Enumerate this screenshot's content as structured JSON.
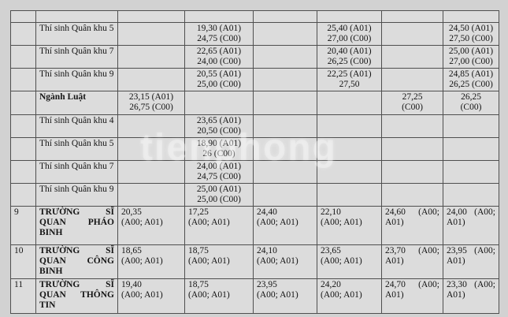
{
  "page": {
    "background_color": "#d2d2d2",
    "watermark_text": "tienphong"
  },
  "table": {
    "cell_background": "#dcdcdc",
    "border_color": "#4f4f4f",
    "rows": [
      {
        "no": "",
        "name": "",
        "type": "empty",
        "scores": [
          "",
          "",
          "",
          "",
          "",
          ""
        ]
      },
      {
        "no": "",
        "name": "Thí sinh Quân khu 5",
        "type": "region",
        "scores": [
          "",
          "19,30 (A01)\n24,75 (C00)",
          "",
          "25,40 (A01)\n27,00 (C00)",
          "",
          "24,50 (A01)\n27,50 (C00)"
        ]
      },
      {
        "no": "",
        "name": "Thí sinh Quân khu 7",
        "type": "region",
        "scores": [
          "",
          "22,65 (A01)\n24,00 (C00)",
          "",
          "20,40 (A01)\n26,25 (C00)",
          "",
          "25,00 (A01)\n27,00 (C00)"
        ]
      },
      {
        "no": "",
        "name": "Thí sinh Quân khu 9",
        "type": "region",
        "scores": [
          "",
          "20,55 (A01)\n25,00 (C00)",
          "",
          "22,25 (A01)\n27,50",
          "",
          "24,85 (A01)\n26,25 (C00)"
        ]
      },
      {
        "no": "",
        "name": "Ngành Luật",
        "type": "major",
        "scores": [
          "23,15 (A01)\n26,75 (C00)",
          "",
          "",
          "",
          "27,25\n(C00)",
          "26,25\n(C00)"
        ]
      },
      {
        "no": "",
        "name": "Thí sinh Quân khu 4",
        "type": "region",
        "scores": [
          "",
          "23,65 (A01)\n20,50 (C00)",
          "",
          "",
          "",
          ""
        ]
      },
      {
        "no": "",
        "name": "Thí sinh Quân khu 5",
        "type": "region",
        "scores": [
          "",
          "18,90 (A01)\n26 (C00)",
          "",
          "",
          "",
          ""
        ]
      },
      {
        "no": "",
        "name": "Thí sinh Quân khu 7",
        "type": "region",
        "scores": [
          "",
          "24,00 (A01)\n24,75 (C00)",
          "",
          "",
          "",
          ""
        ]
      },
      {
        "no": "",
        "name": "Thí sinh Quân khu 9",
        "type": "region",
        "scores": [
          "",
          "25,00 (A01)\n25,00 (C00)",
          "",
          "",
          "",
          ""
        ]
      },
      {
        "no": "9",
        "name": "TRƯỜNG SĨ QUAN PHÁO BINH",
        "type": "school",
        "scores": [
          "20,35\n(A00; A01)",
          "17,25\n(A00; A01)",
          "24,40\n(A00; A01)",
          "22,10\n(A00; A01)",
          "24,60 (A00; A01)",
          "24,00 (A00; A01)"
        ]
      },
      {
        "no": "10",
        "name": "TRƯỜNG SĨ QUAN CÔNG BINH",
        "type": "school",
        "scores": [
          "18,65\n(A00; A01)",
          "18,75\n(A00; A01)",
          "24,10\n(A00; A01)",
          "23,65\n(A00; A01)",
          "23,70 (A00; A01)",
          "23,95 (A00; A01)"
        ]
      },
      {
        "no": "11",
        "name": "TRƯỜNG SĨ QUAN THÔNG TIN",
        "type": "school",
        "scores": [
          "19,40\n(A00; A01)",
          "18,75\n(A00; A01)",
          "23,95\n(A00; A01)",
          "24,20\n(A00; A01)",
          "24,70 (A00; A01)",
          "23,30 (A00; A01)"
        ]
      }
    ]
  }
}
